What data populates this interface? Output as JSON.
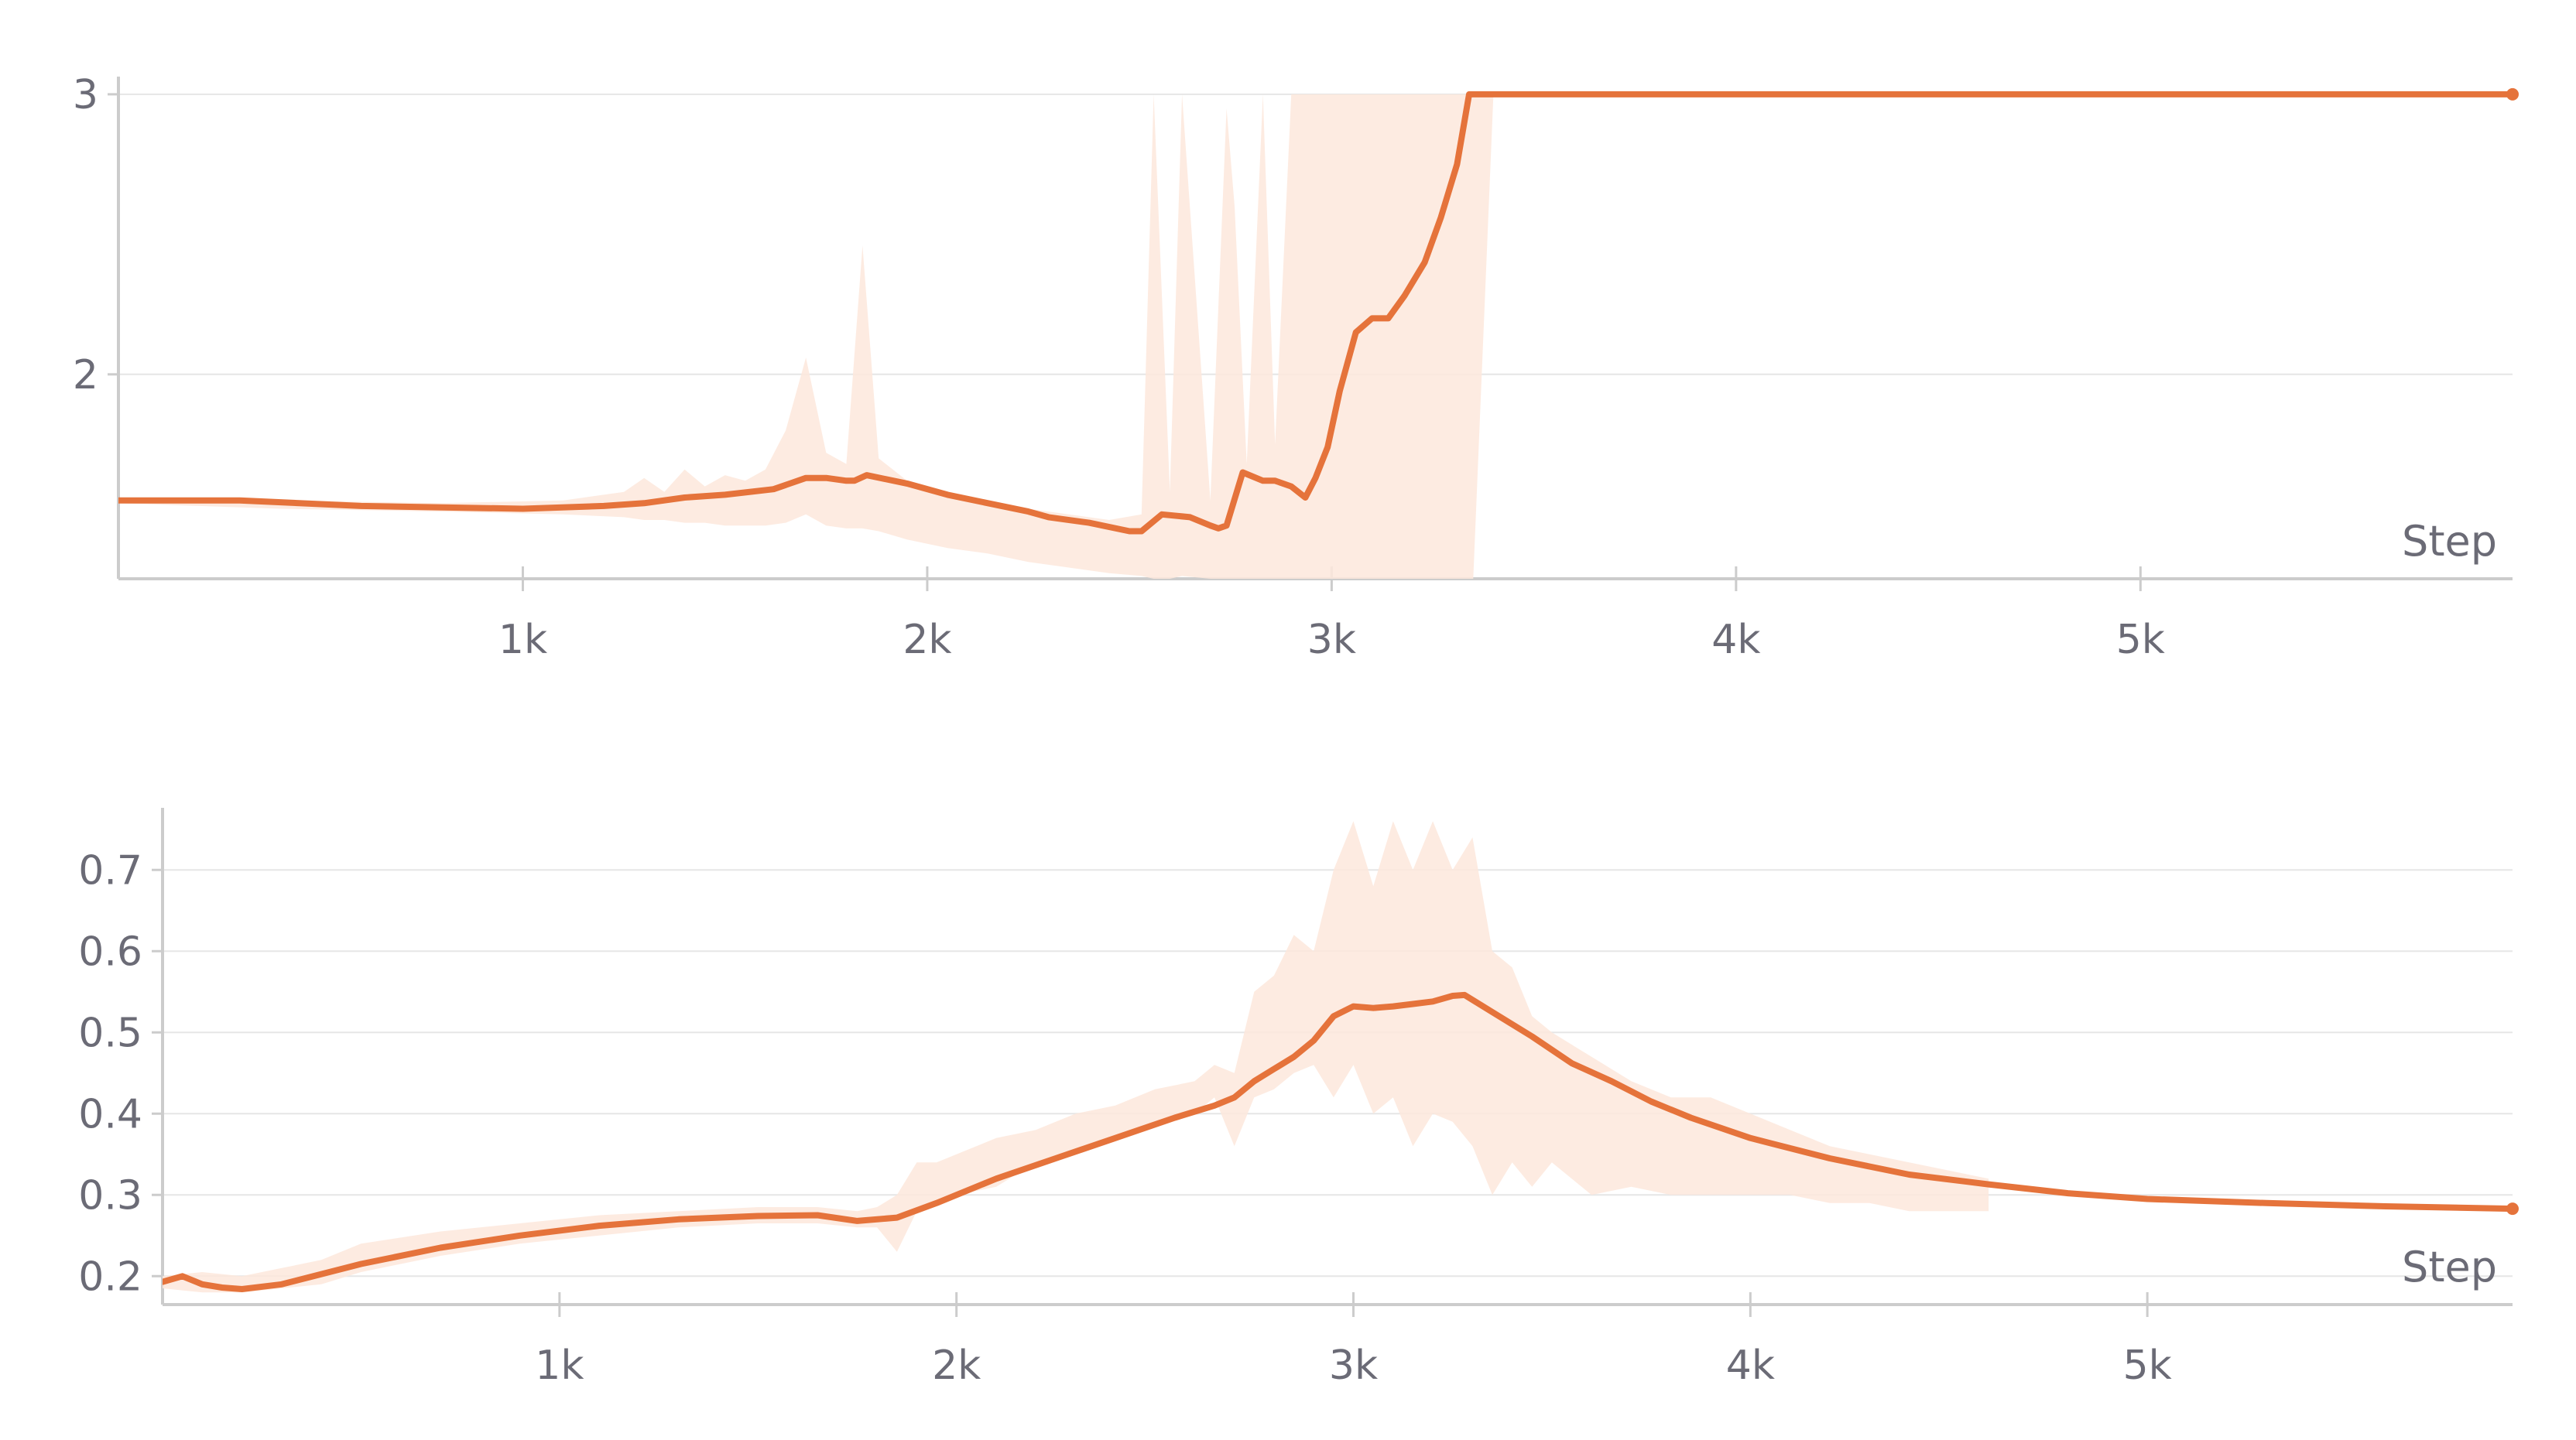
{
  "colors": {
    "line": "#e5733b",
    "band": "#fde7dc",
    "grid": "#e6e6e6",
    "axis": "#cccccc",
    "text": "#6b6b76"
  },
  "chart_data": [
    {
      "type": "line",
      "xlabel": "Step",
      "xlim": [
        0,
        5920
      ],
      "ylim": [
        1.27,
        3.03
      ],
      "grid": true,
      "xticks": [
        {
          "v": 1000,
          "label": "1k"
        },
        {
          "v": 2000,
          "label": "2k"
        },
        {
          "v": 3000,
          "label": "3k"
        },
        {
          "v": 4000,
          "label": "4k"
        },
        {
          "v": 5000,
          "label": "5k"
        }
      ],
      "yticks": [
        {
          "v": 2,
          "label": "2"
        },
        {
          "v": 3,
          "label": "3"
        }
      ],
      "series": [
        {
          "style": "smoothed",
          "x": [
            0,
            300,
            600,
            1000,
            1200,
            1300,
            1400,
            1500,
            1620,
            1700,
            1750,
            1800,
            1820,
            1850,
            1950,
            2050,
            2150,
            2250,
            2300,
            2400,
            2500,
            2530,
            2580,
            2650,
            2700,
            2720,
            2740,
            2780,
            2830,
            2860,
            2900,
            2935,
            2960,
            2990,
            3020,
            3060,
            3100,
            3140,
            3180,
            3230,
            3270,
            3310,
            3340,
            3400,
            5920
          ],
          "y": [
            1.55,
            1.55,
            1.53,
            1.52,
            1.53,
            1.54,
            1.56,
            1.57,
            1.59,
            1.63,
            1.63,
            1.62,
            1.62,
            1.64,
            1.61,
            1.57,
            1.54,
            1.51,
            1.49,
            1.47,
            1.44,
            1.44,
            1.5,
            1.49,
            1.46,
            1.45,
            1.46,
            1.65,
            1.62,
            1.62,
            1.6,
            1.56,
            1.63,
            1.74,
            1.94,
            2.15,
            2.2,
            2.2,
            2.28,
            2.4,
            2.56,
            2.75,
            3.0,
            3.0,
            3.0
          ]
        },
        {
          "style": "raw-range",
          "x": [
            0,
            400,
            800,
            1100,
            1250,
            1300,
            1350,
            1400,
            1450,
            1500,
            1550,
            1600,
            1650,
            1700,
            1750,
            1800,
            1840,
            1880,
            1950,
            2050,
            2150,
            2250,
            2350,
            2450,
            2530,
            2560,
            2600,
            2630,
            2700,
            2740,
            2760,
            2790,
            2830,
            2860,
            2900,
            2950,
            3000,
            3050,
            3100,
            3150,
            3200,
            3250,
            3300,
            3350,
            3400,
            3450,
            3500
          ],
          "ymax": [
            1.56,
            1.55,
            1.54,
            1.55,
            1.58,
            1.63,
            1.58,
            1.66,
            1.6,
            1.64,
            1.62,
            1.66,
            1.8,
            2.06,
            1.72,
            1.68,
            2.46,
            1.7,
            1.62,
            1.58,
            1.55,
            1.52,
            1.5,
            1.48,
            1.5,
            3.0,
            1.58,
            3.0,
            1.55,
            2.95,
            2.6,
            1.68,
            3.0,
            1.75,
            3.0,
            3.0,
            3.0,
            3.0,
            3.0,
            3.0,
            3.0,
            3.0,
            3.0,
            3.0,
            3.0,
            3.0,
            3.0
          ],
          "ymin": [
            1.54,
            1.52,
            1.51,
            1.5,
            1.49,
            1.48,
            1.48,
            1.47,
            1.47,
            1.46,
            1.46,
            1.46,
            1.47,
            1.5,
            1.46,
            1.45,
            1.45,
            1.44,
            1.41,
            1.38,
            1.36,
            1.33,
            1.31,
            1.29,
            1.28,
            1.27,
            1.27,
            1.28,
            1.27,
            1.27,
            1.27,
            1.27,
            1.27,
            1.27,
            1.27,
            1.27,
            1.27,
            1.27,
            1.27,
            1.27,
            1.27,
            1.27,
            1.27,
            1.27,
            3.0,
            3.0,
            3.0
          ]
        }
      ]
    },
    {
      "type": "line",
      "xlabel": "Step",
      "xlim": [
        0,
        5920
      ],
      "ylim": [
        0.165,
        0.765
      ],
      "grid": true,
      "xticks": [
        {
          "v": 1000,
          "label": "1k"
        },
        {
          "v": 2000,
          "label": "2k"
        },
        {
          "v": 3000,
          "label": "3k"
        },
        {
          "v": 4000,
          "label": "4k"
        },
        {
          "v": 5000,
          "label": "5k"
        }
      ],
      "yticks": [
        {
          "v": 0.2,
          "label": "0.2"
        },
        {
          "v": 0.3,
          "label": "0.3"
        },
        {
          "v": 0.4,
          "label": "0.4"
        },
        {
          "v": 0.5,
          "label": "0.5"
        },
        {
          "v": 0.6,
          "label": "0.6"
        },
        {
          "v": 0.7,
          "label": "0.7"
        }
      ],
      "series": [
        {
          "style": "smoothed",
          "x": [
            0,
            50,
            100,
            150,
            200,
            300,
            500,
            700,
            900,
            1100,
            1300,
            1500,
            1650,
            1750,
            1850,
            1950,
            2100,
            2250,
            2400,
            2550,
            2650,
            2700,
            2750,
            2800,
            2850,
            2900,
            2950,
            3000,
            3050,
            3100,
            3150,
            3200,
            3250,
            3280,
            3350,
            3450,
            3550,
            3650,
            3750,
            3850,
            4000,
            4200,
            4400,
            4600,
            4800,
            5000,
            5300,
            5600,
            5920
          ],
          "y": [
            0.193,
            0.2,
            0.19,
            0.186,
            0.184,
            0.19,
            0.215,
            0.235,
            0.25,
            0.262,
            0.27,
            0.274,
            0.275,
            0.268,
            0.272,
            0.29,
            0.32,
            0.345,
            0.37,
            0.395,
            0.41,
            0.42,
            0.44,
            0.455,
            0.47,
            0.49,
            0.52,
            0.532,
            0.53,
            0.532,
            0.535,
            0.538,
            0.545,
            0.546,
            0.525,
            0.495,
            0.462,
            0.44,
            0.415,
            0.395,
            0.37,
            0.345,
            0.325,
            0.313,
            0.302,
            0.295,
            0.29,
            0.286,
            0.283
          ]
        },
        {
          "style": "raw-range",
          "x": [
            0,
            100,
            200,
            300,
            400,
            500,
            700,
            900,
            1100,
            1300,
            1500,
            1650,
            1750,
            1800,
            1850,
            1900,
            1950,
            2000,
            2100,
            2200,
            2300,
            2400,
            2500,
            2600,
            2650,
            2700,
            2750,
            2800,
            2850,
            2900,
            2950,
            3000,
            3050,
            3100,
            3150,
            3200,
            3250,
            3300,
            3350,
            3400,
            3450,
            3500,
            3600,
            3700,
            3800,
            3900,
            4000,
            4100,
            4200,
            4300,
            4400,
            4500,
            4600
          ],
          "ymax": [
            0.2,
            0.205,
            0.2,
            0.21,
            0.22,
            0.24,
            0.255,
            0.265,
            0.275,
            0.28,
            0.285,
            0.285,
            0.28,
            0.285,
            0.3,
            0.34,
            0.34,
            0.35,
            0.37,
            0.38,
            0.4,
            0.41,
            0.43,
            0.44,
            0.46,
            0.45,
            0.55,
            0.57,
            0.62,
            0.6,
            0.7,
            0.76,
            0.68,
            0.76,
            0.7,
            0.76,
            0.7,
            0.74,
            0.6,
            0.58,
            0.52,
            0.5,
            0.47,
            0.44,
            0.42,
            0.42,
            0.4,
            0.38,
            0.36,
            0.35,
            0.34,
            0.33,
            0.32
          ]
        },
        {
          "style": "raw-range-min",
          "x": [
            0,
            100,
            200,
            300,
            400,
            500,
            700,
            900,
            1100,
            1300,
            1500,
            1650,
            1750,
            1800,
            1850,
            1900,
            1950,
            2000,
            2100,
            2200,
            2300,
            2400,
            2500,
            2600,
            2650,
            2700,
            2750,
            2800,
            2850,
            2900,
            2950,
            3000,
            3050,
            3100,
            3150,
            3200,
            3250,
            3300,
            3350,
            3400,
            3450,
            3500,
            3600,
            3700,
            3800,
            3900,
            4000,
            4100,
            4200,
            4300,
            4400,
            4500,
            4600
          ],
          "ymin": [
            0.185,
            0.18,
            0.18,
            0.185,
            0.19,
            0.205,
            0.225,
            0.24,
            0.25,
            0.26,
            0.265,
            0.265,
            0.26,
            0.26,
            0.23,
            0.28,
            0.29,
            0.3,
            0.31,
            0.34,
            0.35,
            0.37,
            0.39,
            0.4,
            0.42,
            0.36,
            0.42,
            0.43,
            0.45,
            0.46,
            0.42,
            0.46,
            0.4,
            0.42,
            0.36,
            0.4,
            0.39,
            0.36,
            0.3,
            0.34,
            0.31,
            0.34,
            0.3,
            0.31,
            0.3,
            0.3,
            0.3,
            0.3,
            0.29,
            0.29,
            0.28,
            0.28,
            0.28
          ]
        }
      ]
    }
  ]
}
